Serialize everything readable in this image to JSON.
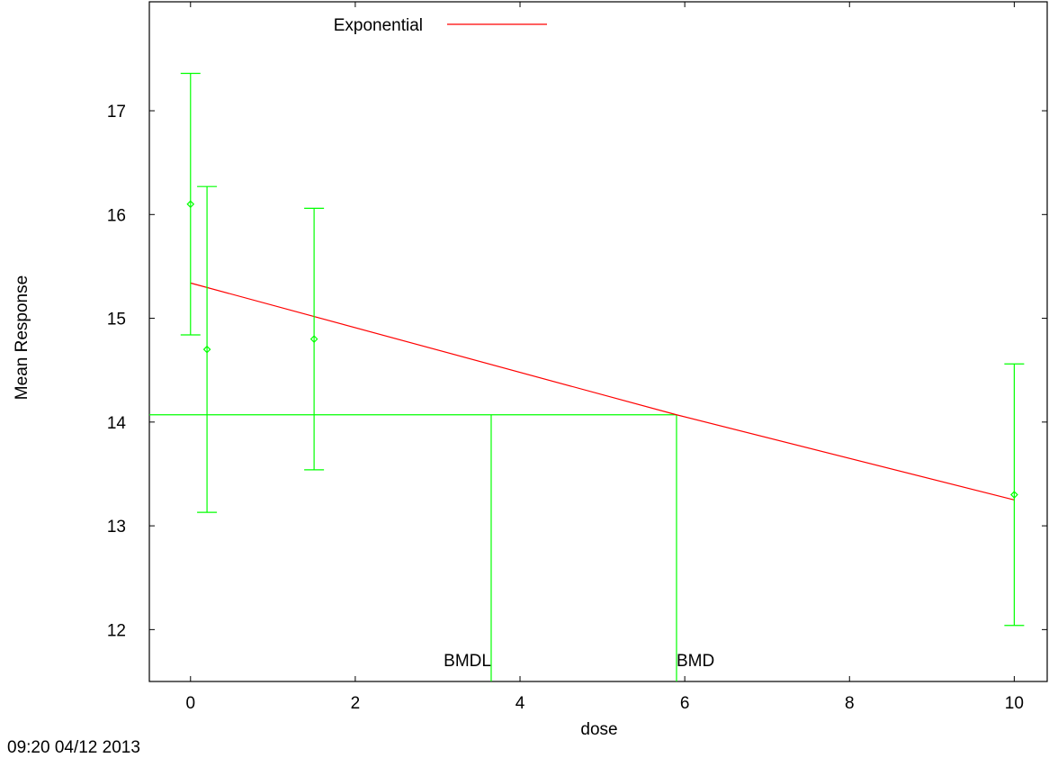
{
  "chart_data": {
    "type": "line",
    "xlabel": "dose",
    "ylabel": "Mean Response",
    "xlim": [
      -0.5,
      10.4
    ],
    "ylim": [
      11.5,
      18.05
    ],
    "x_ticks": [
      0,
      2,
      4,
      6,
      8,
      10
    ],
    "y_ticks": [
      12,
      13,
      14,
      15,
      16,
      17
    ],
    "grid": false,
    "legend": {
      "position": "top-center",
      "entries": [
        {
          "name": "Exponential",
          "color": "#ff0000"
        }
      ]
    },
    "series": [
      {
        "name": "Exponential",
        "kind": "fitted-line",
        "color": "#ff0000",
        "x": [
          0,
          5.9,
          10
        ],
        "y": [
          15.34,
          14.07,
          13.25
        ]
      },
      {
        "kind": "observed-means",
        "color": "#00ff00",
        "marker": "diamond",
        "points": [
          {
            "x": 0,
            "y": 16.1,
            "lower": 14.84,
            "upper": 17.36
          },
          {
            "x": 0.2,
            "y": 14.7,
            "lower": 13.13,
            "upper": 16.27
          },
          {
            "x": 1.5,
            "y": 14.8,
            "lower": 13.54,
            "upper": 16.06
          },
          {
            "x": 10,
            "y": 13.3,
            "lower": 12.04,
            "upper": 14.56
          }
        ]
      }
    ],
    "annotations": {
      "bmr_level": 14.07,
      "bmdl": {
        "label": "BMDL",
        "x": 3.65
      },
      "bmd": {
        "label": "BMD",
        "x": 5.9
      },
      "color": "#00ff00"
    },
    "footer_text": "09:20 04/12 2013"
  }
}
